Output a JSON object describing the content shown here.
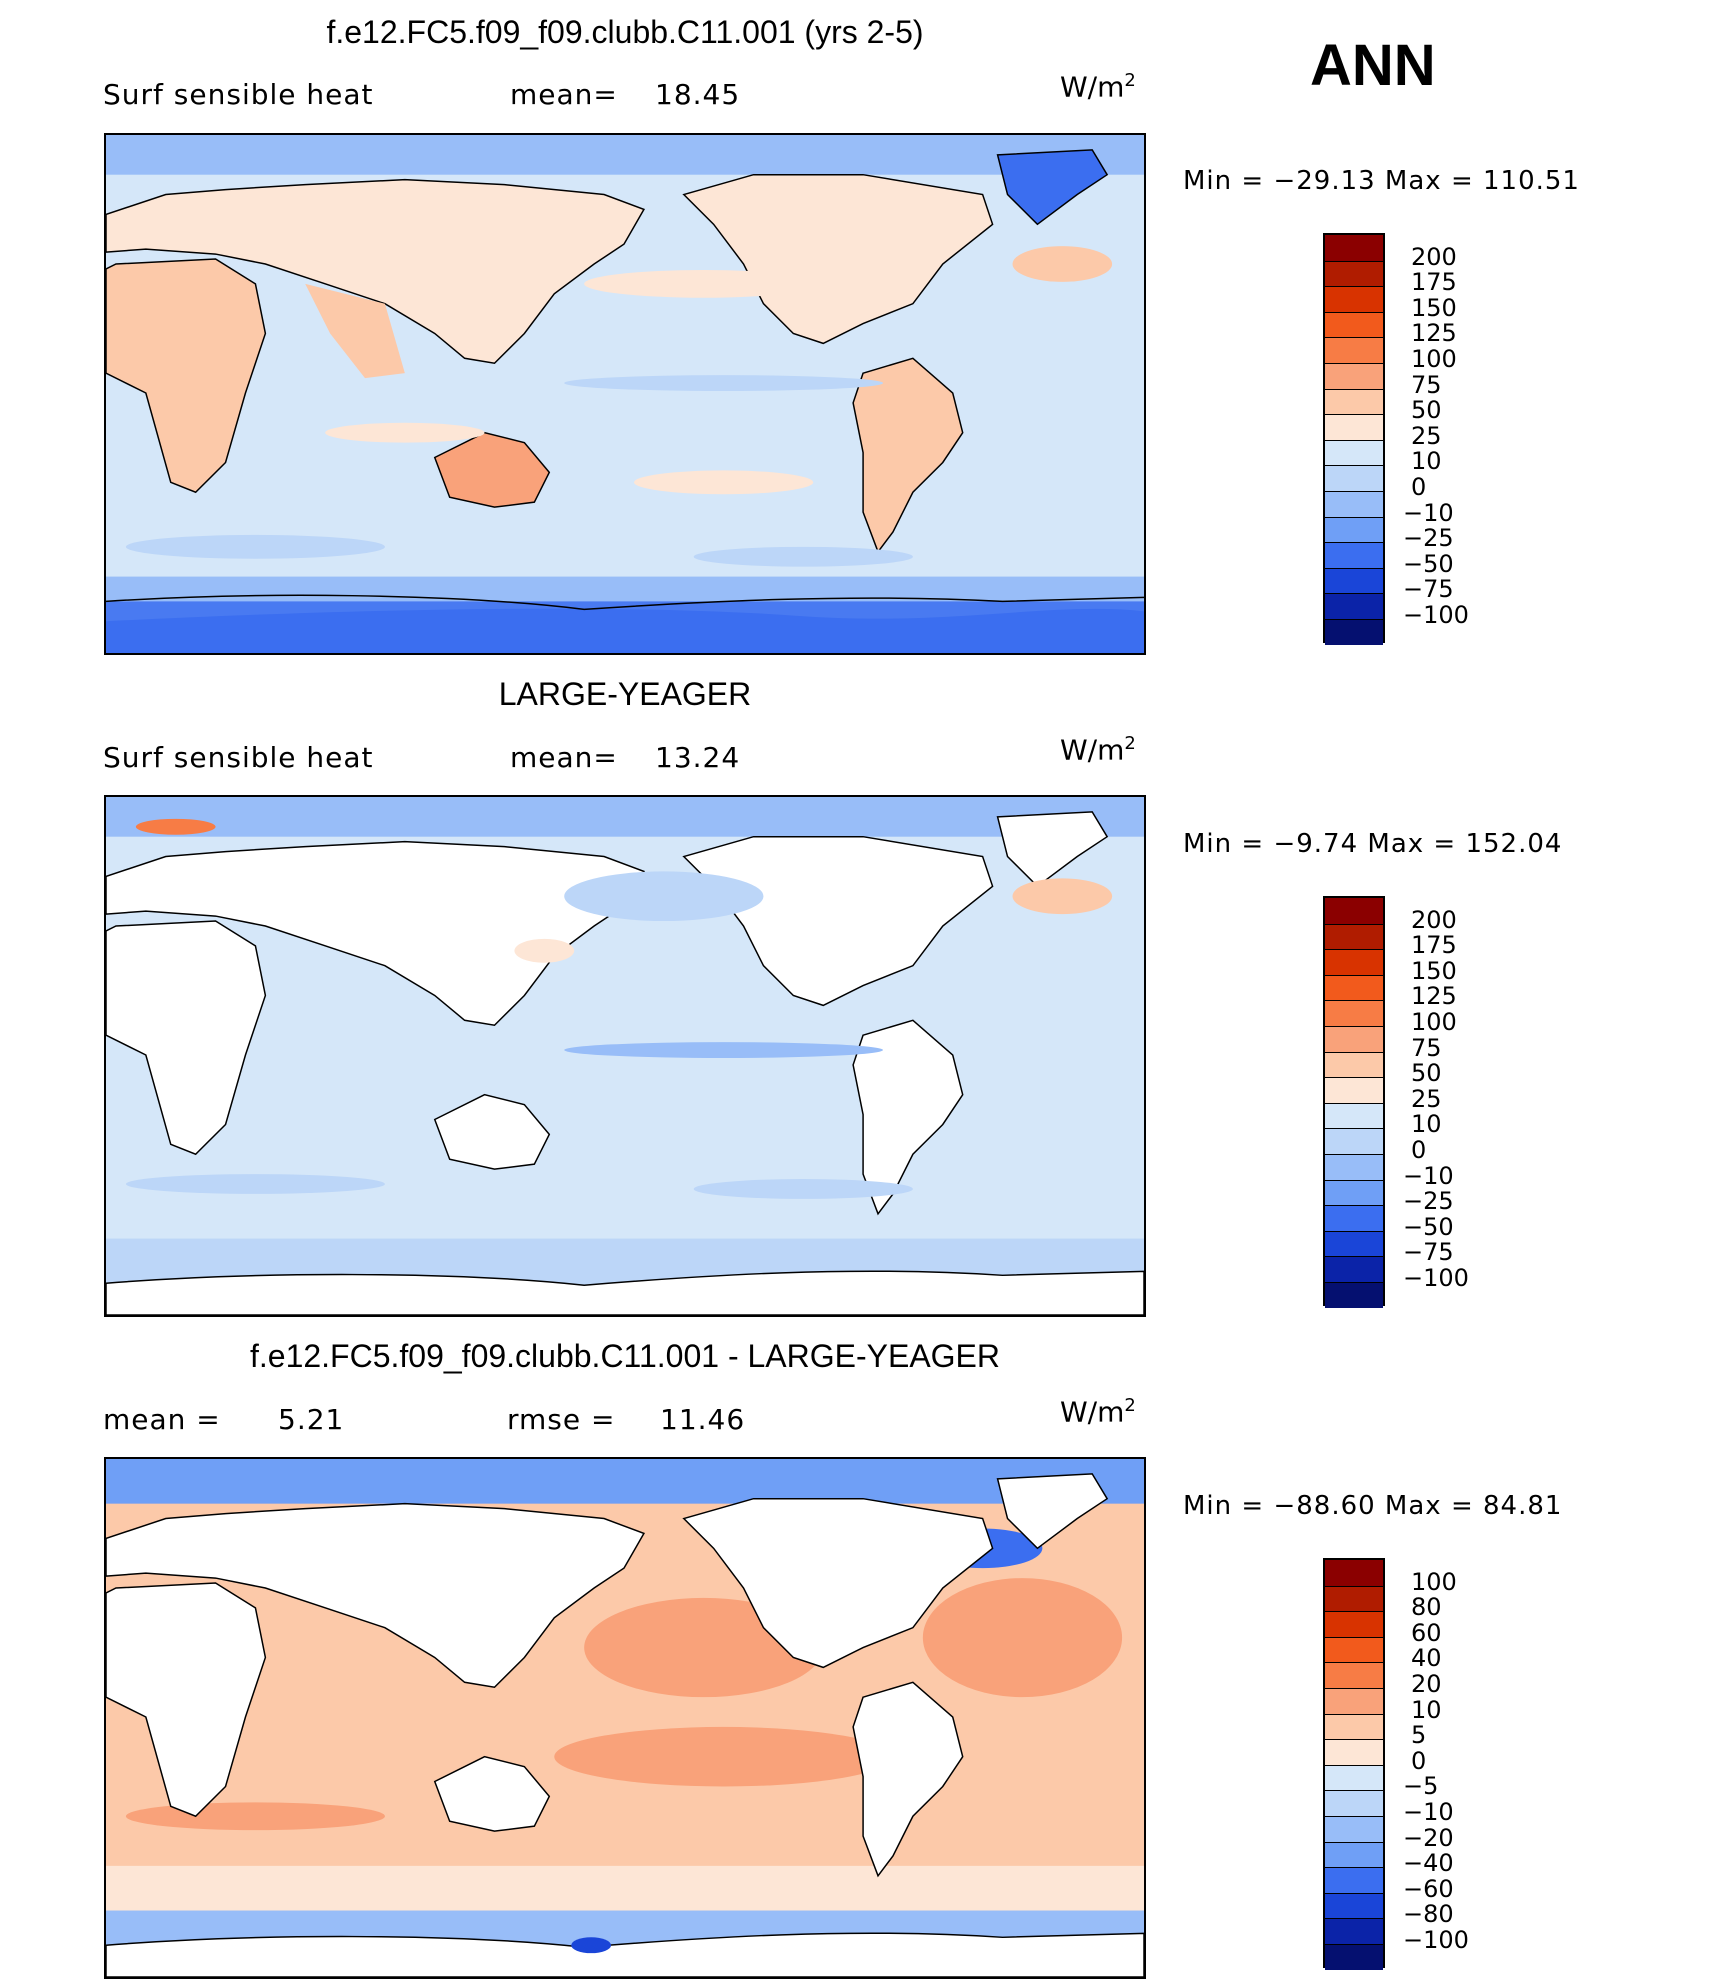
{
  "season": "ANN",
  "units_label": "W/m",
  "units_exp": "2",
  "panels": [
    {
      "title": "f.e12.FC5.f09_f09.clubb.C11.001 (yrs 2-5)",
      "left_label": "Surf  sensible  heat",
      "mid_label": "mean=",
      "mid_value": "18.45",
      "minmax": "Min  =  −29.13  Max  =  110.51",
      "levels": [
        "200",
        "175",
        "150",
        "125",
        "100",
        "75",
        "50",
        "25",
        "10",
        "0",
        "−10",
        "−25",
        "−50",
        "−75",
        "−100"
      ],
      "colors": [
        "#8b0000",
        "#b01c00",
        "#d83300",
        "#f25a1c",
        "#f77c45",
        "#f9a27a",
        "#fcc9a9",
        "#fde6d6",
        "#d5e7f9",
        "#bcd6f8",
        "#98bdf8",
        "#6f9ff6",
        "#3b6ef0",
        "#1a45d8",
        "#0b23a8",
        "#051070"
      ],
      "map_fill": "ocean"
    },
    {
      "title": "LARGE-YEAGER",
      "left_label": "Surf  sensible  heat",
      "mid_label": "mean=",
      "mid_value": "13.24",
      "minmax": "Min  =    −9.74  Max  =  152.04",
      "levels": [
        "200",
        "175",
        "150",
        "125",
        "100",
        "75",
        "50",
        "25",
        "10",
        "0",
        "−10",
        "−25",
        "−50",
        "−75",
        "−100"
      ],
      "colors": [
        "#8b0000",
        "#b01c00",
        "#d83300",
        "#f25a1c",
        "#f77c45",
        "#f9a27a",
        "#fcc9a9",
        "#fde6d6",
        "#d5e7f9",
        "#bcd6f8",
        "#98bdf8",
        "#6f9ff6",
        "#3b6ef0",
        "#1a45d8",
        "#0b23a8",
        "#051070"
      ],
      "map_fill": "obs"
    },
    {
      "title": "f.e12.FC5.f09_f09.clubb.C11.001 - LARGE-YEAGER",
      "left_label": "mean  =",
      "left_value": "5.21",
      "mid_label": "rmse  =",
      "mid_value": "11.46",
      "minmax": "Min  =  −88.60  Max  =    84.81",
      "levels": [
        "100",
        "80",
        "60",
        "40",
        "20",
        "10",
        "5",
        "0",
        "−5",
        "−10",
        "−20",
        "−40",
        "−60",
        "−80",
        "−100"
      ],
      "colors": [
        "#8b0000",
        "#b01c00",
        "#d83300",
        "#f25a1c",
        "#f77c45",
        "#f9a27a",
        "#fcc9a9",
        "#fde6d6",
        "#d5e7f9",
        "#bcd6f8",
        "#98bdf8",
        "#6f9ff6",
        "#3b6ef0",
        "#1a45d8",
        "#0b23a8",
        "#051070"
      ],
      "map_fill": "diff"
    }
  ]
}
